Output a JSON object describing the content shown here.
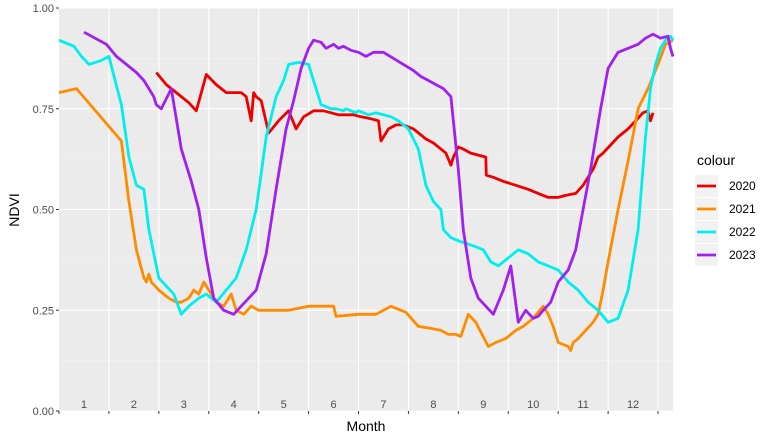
{
  "chart_data": {
    "type": "line",
    "xlabel": "Month",
    "ylabel": "NDVI",
    "xlim": [
      0,
      12.3
    ],
    "ylim": [
      0,
      1
    ],
    "x_tick_labels": [
      "1",
      "2",
      "3",
      "4",
      "5",
      "6",
      "7",
      "8",
      "9",
      "10",
      "11",
      "12"
    ],
    "y_ticks": [
      0,
      0.25,
      0.5,
      0.75,
      1
    ],
    "y_tick_labels": [
      "0.00",
      "0.25",
      "0.50",
      "0.75",
      "1.00"
    ],
    "grid": true,
    "legend_title": "colour",
    "legend_position": "right",
    "series": [
      {
        "name": "2020",
        "color": "#ee0000",
        "x": [
          1.95,
          2.15,
          2.4,
          2.6,
          2.75,
          2.85,
          2.95,
          3.15,
          3.35,
          3.55,
          3.65,
          3.75,
          3.85,
          3.9,
          3.95,
          4.05,
          4.2,
          4.4,
          4.6,
          4.75,
          4.9,
          5.1,
          5.3,
          5.45,
          5.6,
          5.75,
          5.9,
          6.05,
          6.25,
          6.4,
          6.45,
          6.6,
          6.75,
          6.9,
          7.0,
          7.1,
          7.2,
          7.35,
          7.5,
          7.6,
          7.75,
          7.85,
          7.9,
          8.0,
          8.1,
          8.25,
          8.4,
          8.55,
          8.56,
          8.7,
          8.9,
          9.15,
          9.4,
          9.6,
          9.8,
          10.0,
          10.15,
          10.35,
          10.5,
          10.6,
          10.7,
          10.8,
          10.9,
          11.05,
          11.2,
          11.4,
          11.55,
          11.7,
          11.8,
          11.85,
          11.9
        ],
        "y": [
          0.84,
          0.81,
          0.785,
          0.765,
          0.745,
          0.79,
          0.835,
          0.81,
          0.79,
          0.79,
          0.79,
          0.78,
          0.72,
          0.79,
          0.78,
          0.77,
          0.69,
          0.72,
          0.745,
          0.7,
          0.73,
          0.745,
          0.745,
          0.74,
          0.735,
          0.735,
          0.735,
          0.73,
          0.725,
          0.72,
          0.67,
          0.7,
          0.71,
          0.71,
          0.705,
          0.7,
          0.69,
          0.675,
          0.665,
          0.655,
          0.64,
          0.61,
          0.63,
          0.655,
          0.65,
          0.64,
          0.635,
          0.63,
          0.585,
          0.58,
          0.57,
          0.56,
          0.55,
          0.54,
          0.53,
          0.53,
          0.535,
          0.54,
          0.56,
          0.58,
          0.6,
          0.63,
          0.64,
          0.66,
          0.68,
          0.7,
          0.72,
          0.74,
          0.745,
          0.72,
          0.74
        ]
      },
      {
        "name": "2021",
        "color": "#ff8c00",
        "x": [
          0.0,
          0.35,
          1.25,
          1.4,
          1.55,
          1.7,
          1.75,
          1.8,
          1.85,
          2.0,
          2.2,
          2.35,
          2.45,
          2.6,
          2.7,
          2.8,
          2.9,
          3.0,
          3.15,
          3.3,
          3.45,
          3.55,
          3.7,
          3.85,
          4.0,
          4.3,
          4.6,
          5.0,
          5.5,
          5.55,
          6.0,
          6.35,
          6.65,
          6.95,
          7.2,
          7.45,
          7.65,
          7.8,
          7.95,
          8.05,
          8.2,
          8.35,
          8.6,
          8.75,
          8.95,
          9.15,
          9.3,
          9.5,
          9.6,
          9.7,
          9.8,
          9.9,
          10.0,
          10.1,
          10.2,
          10.25,
          10.3,
          10.4,
          10.55,
          10.7,
          10.8,
          10.9,
          11.0,
          11.2,
          11.4,
          11.6,
          11.8,
          12.0,
          12.15,
          12.3
        ],
        "y": [
          0.79,
          0.8,
          0.67,
          0.52,
          0.4,
          0.33,
          0.32,
          0.34,
          0.32,
          0.3,
          0.28,
          0.27,
          0.27,
          0.28,
          0.3,
          0.29,
          0.32,
          0.3,
          0.27,
          0.26,
          0.29,
          0.25,
          0.24,
          0.26,
          0.25,
          0.25,
          0.25,
          0.26,
          0.26,
          0.235,
          0.24,
          0.24,
          0.26,
          0.245,
          0.21,
          0.205,
          0.2,
          0.19,
          0.19,
          0.185,
          0.24,
          0.22,
          0.16,
          0.17,
          0.18,
          0.2,
          0.21,
          0.23,
          0.245,
          0.26,
          0.24,
          0.21,
          0.17,
          0.165,
          0.16,
          0.15,
          0.17,
          0.18,
          0.2,
          0.22,
          0.24,
          0.3,
          0.37,
          0.5,
          0.62,
          0.75,
          0.8,
          0.86,
          0.91,
          0.92
        ]
      },
      {
        "name": "2022",
        "color": "#00eeee",
        "x": [
          0.0,
          0.3,
          0.45,
          0.6,
          0.85,
          1.0,
          1.25,
          1.4,
          1.55,
          1.7,
          1.75,
          1.8,
          2.0,
          2.15,
          2.3,
          2.45,
          2.6,
          2.8,
          2.95,
          3.15,
          3.35,
          3.55,
          3.75,
          3.95,
          4.15,
          4.35,
          4.5,
          4.6,
          4.8,
          5.0,
          5.25,
          5.45,
          5.55,
          5.7,
          5.75,
          5.85,
          5.95,
          6.0,
          6.1,
          6.2,
          6.35,
          6.5,
          6.65,
          6.8,
          7.0,
          7.2,
          7.35,
          7.5,
          7.65,
          7.7,
          7.85,
          8.05,
          8.3,
          8.5,
          8.65,
          8.8,
          9.0,
          9.2,
          9.4,
          9.6,
          9.8,
          10.0,
          10.2,
          10.4,
          10.6,
          10.8,
          11.0,
          11.2,
          11.4,
          11.6,
          11.75,
          11.85,
          11.95,
          12.05,
          12.15,
          12.25,
          12.3
        ],
        "y": [
          0.92,
          0.905,
          0.88,
          0.86,
          0.87,
          0.88,
          0.76,
          0.63,
          0.56,
          0.55,
          0.5,
          0.45,
          0.33,
          0.31,
          0.29,
          0.24,
          0.26,
          0.28,
          0.29,
          0.27,
          0.3,
          0.33,
          0.4,
          0.5,
          0.68,
          0.78,
          0.82,
          0.86,
          0.865,
          0.86,
          0.76,
          0.75,
          0.75,
          0.745,
          0.75,
          0.745,
          0.74,
          0.745,
          0.74,
          0.735,
          0.74,
          0.735,
          0.73,
          0.72,
          0.7,
          0.65,
          0.56,
          0.52,
          0.5,
          0.45,
          0.43,
          0.42,
          0.41,
          0.4,
          0.37,
          0.36,
          0.38,
          0.4,
          0.39,
          0.37,
          0.36,
          0.35,
          0.32,
          0.3,
          0.27,
          0.25,
          0.22,
          0.23,
          0.3,
          0.45,
          0.68,
          0.8,
          0.86,
          0.9,
          0.92,
          0.93,
          0.92
        ]
      },
      {
        "name": "2023",
        "color": "#a020f0",
        "x": [
          0.5,
          0.95,
          1.15,
          1.35,
          1.55,
          1.7,
          1.8,
          1.9,
          1.95,
          2.05,
          2.25,
          2.45,
          2.65,
          2.8,
          2.95,
          3.1,
          3.3,
          3.5,
          3.65,
          3.8,
          3.95,
          4.15,
          4.35,
          4.55,
          4.7,
          4.85,
          5.0,
          5.1,
          5.25,
          5.35,
          5.5,
          5.6,
          5.7,
          5.85,
          6.0,
          6.15,
          6.3,
          6.5,
          6.7,
          6.9,
          7.1,
          7.25,
          7.4,
          7.55,
          7.7,
          7.85,
          8.0,
          8.1,
          8.25,
          8.4,
          8.55,
          8.7,
          8.9,
          9.05,
          9.2,
          9.35,
          9.5,
          9.6,
          9.7,
          9.85,
          10.0,
          10.2,
          10.35,
          10.5,
          10.65,
          10.85,
          11.0,
          11.2,
          11.4,
          11.6,
          11.75,
          11.9,
          12.05,
          12.2,
          12.25,
          12.3
        ],
        "y": [
          0.94,
          0.91,
          0.88,
          0.86,
          0.84,
          0.82,
          0.8,
          0.78,
          0.76,
          0.75,
          0.8,
          0.65,
          0.57,
          0.5,
          0.38,
          0.28,
          0.25,
          0.24,
          0.26,
          0.28,
          0.3,
          0.39,
          0.55,
          0.7,
          0.77,
          0.85,
          0.9,
          0.92,
          0.915,
          0.9,
          0.91,
          0.9,
          0.905,
          0.895,
          0.89,
          0.88,
          0.89,
          0.89,
          0.875,
          0.86,
          0.845,
          0.83,
          0.82,
          0.81,
          0.8,
          0.78,
          0.6,
          0.45,
          0.33,
          0.28,
          0.26,
          0.24,
          0.3,
          0.36,
          0.22,
          0.25,
          0.23,
          0.235,
          0.25,
          0.27,
          0.32,
          0.35,
          0.4,
          0.5,
          0.6,
          0.75,
          0.85,
          0.89,
          0.9,
          0.91,
          0.925,
          0.935,
          0.925,
          0.93,
          0.9,
          0.88
        ]
      }
    ]
  }
}
